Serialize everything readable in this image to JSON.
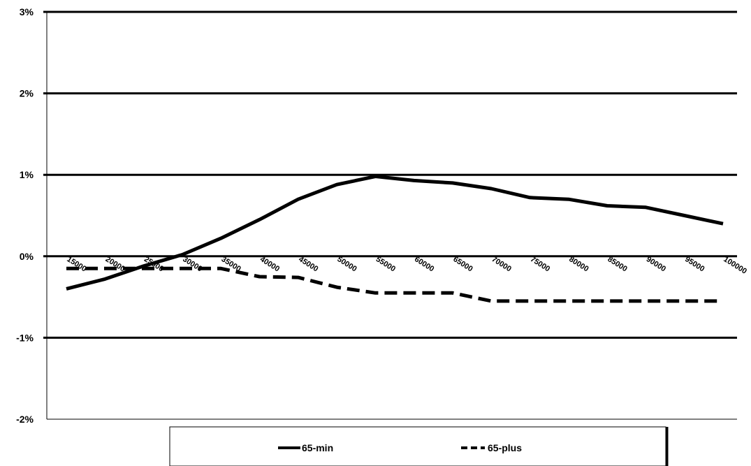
{
  "chart_data": {
    "type": "line",
    "title": "",
    "xlabel": "",
    "ylabel": "",
    "y_unit": "%",
    "ylim": [
      -2,
      3
    ],
    "yticks": [
      {
        "value": -2,
        "label": "-2%"
      },
      {
        "value": -1,
        "label": "-1%"
      },
      {
        "value": 0,
        "label": "0%"
      },
      {
        "value": 1,
        "label": "1%"
      },
      {
        "value": 2,
        "label": "2%"
      },
      {
        "value": 3,
        "label": "3%"
      }
    ],
    "x": [
      15000,
      20000,
      25000,
      30000,
      35000,
      40000,
      45000,
      50000,
      55000,
      60000,
      65000,
      70000,
      75000,
      80000,
      85000,
      90000,
      95000,
      100000
    ],
    "xtick_labels": [
      "15000",
      "20000",
      "25000",
      "30000",
      "35000",
      "40000",
      "45000",
      "50000",
      "55000",
      "60000",
      "65000",
      "70000",
      "75000",
      "80000",
      "85000",
      "90000",
      "95000",
      "100000"
    ],
    "grid": "horizontal",
    "legend_position": "bottom",
    "series": [
      {
        "name": "65-min",
        "style": "solid",
        "color": "#000000",
        "values": [
          -0.4,
          -0.28,
          -0.12,
          0.02,
          0.22,
          0.45,
          0.7,
          0.88,
          0.98,
          0.93,
          0.9,
          0.83,
          0.72,
          0.7,
          0.62,
          0.6,
          0.5,
          0.4
        ]
      },
      {
        "name": "65-plus",
        "style": "dashed",
        "color": "#000000",
        "values": [
          -0.15,
          -0.15,
          -0.15,
          -0.15,
          -0.15,
          -0.25,
          -0.26,
          -0.38,
          -0.45,
          -0.45,
          -0.45,
          -0.55,
          -0.55,
          -0.55,
          -0.55,
          -0.55,
          -0.55,
          -0.55
        ]
      }
    ]
  }
}
